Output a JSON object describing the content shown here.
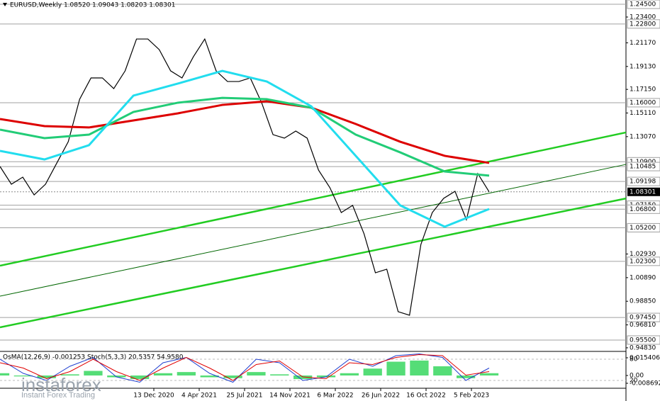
{
  "chart_data": {
    "type": "line",
    "title": "EURUSD,Weekly  1.08520 1.09043 1.08203 1.08301",
    "xticks": [
      "13 Dec 2020",
      "4 Apr 2021",
      "25 Jul 2021",
      "14 Nov 2021",
      "6 Mar 2022",
      "26 Jun 2022",
      "16 Oct 2022",
      "5 Feb 2023"
    ],
    "ylim": [
      0.9458,
      1.2487
    ],
    "yticks": [
      {
        "value": 1.234,
        "label": "1.23400"
      },
      {
        "value": 1.2117,
        "label": "1.21170"
      },
      {
        "value": 1.1913,
        "label": "1.19130"
      },
      {
        "value": 1.1715,
        "label": "1.17150"
      },
      {
        "value": 1.1511,
        "label": "1.15110"
      },
      {
        "value": 1.1307,
        "label": "1.13070"
      },
      {
        "value": 1.0293,
        "label": "1.02930"
      },
      {
        "value": 1.0089,
        "label": "1.00890"
      },
      {
        "value": 0.9885,
        "label": "0.98850"
      },
      {
        "value": 0.9681,
        "label": "0.96810"
      },
      {
        "value": 0.9483,
        "label": "0.94830"
      }
    ],
    "levels": [
      {
        "value": 1.245,
        "label": "1.24500"
      },
      {
        "value": 1.228,
        "label": "1.22800"
      },
      {
        "value": 1.16,
        "label": "1.16000"
      },
      {
        "value": 1.109,
        "label": "1.10900"
      },
      {
        "value": 1.10485,
        "label": "1.10485"
      },
      {
        "value": 1.09198,
        "label": "1.09198"
      },
      {
        "value": 1.0715,
        "label": "1.07150"
      },
      {
        "value": 1.068,
        "label": "1.06800"
      },
      {
        "value": 1.052,
        "label": "1.05200"
      },
      {
        "value": 1.023,
        "label": "1.02300"
      },
      {
        "value": 0.9745,
        "label": "0.97450"
      },
      {
        "value": 0.955,
        "label": "0.95500"
      }
    ],
    "current_price": {
      "value": 1.08301,
      "label": "1.08301"
    },
    "series": [
      {
        "color": "#000000",
        "values": [
          1.1049,
          1.0896,
          1.0957,
          1.0804,
          1.0896,
          1.108,
          1.1263,
          1.163,
          1.1814,
          1.1814,
          1.1722,
          1.1875,
          1.215,
          1.215,
          1.2058,
          1.1875,
          1.1814,
          1.1997,
          1.215,
          1.1875,
          1.1783,
          1.1783,
          1.1814,
          1.16,
          1.1324,
          1.1294,
          1.1355,
          1.1294,
          1.1018,
          1.0866,
          1.0651,
          1.0713,
          1.0468,
          1.0131,
          1.0162,
          0.9795,
          0.9764,
          1.0376,
          1.0651,
          1.0774,
          1.0835,
          1.059,
          1.0988,
          1.083
        ]
      },
      {
        "color": "#dd0000",
        "values": [
          1.1459,
          1.1398,
          1.1386,
          1.1447,
          1.1508,
          1.1581,
          1.1612,
          1.1557,
          1.1416,
          1.1263,
          1.1141,
          1.108
        ]
      },
      {
        "color": "#22cc77",
        "values": [
          1.1367,
          1.1294,
          1.1324,
          1.152,
          1.16,
          1.1642,
          1.163,
          1.1557,
          1.1324,
          1.1171,
          1.1006,
          1.097
        ]
      },
      {
        "color": "#22ddee",
        "values": [
          1.1184,
          1.111,
          1.1233,
          1.1661,
          1.1765,
          1.1875,
          1.1783,
          1.1569,
          1.1141,
          1.0713,
          1.0529,
          1.0682
        ]
      }
    ],
    "trendlines": [
      {
        "color": "#22cc22",
        "values": [
          1.0192,
          1.1343
        ]
      },
      {
        "color": "#22cc22",
        "values": [
          0.966,
          1.0773
        ]
      },
      {
        "color": "#006600",
        "values": [
          0.9929,
          1.1067
        ]
      }
    ],
    "indicator_label": "OsMA(12,26,9) -0.001253  Stoch(5,3,3) 20.5357 54.9580",
    "osma": {
      "color": "#55dd77",
      "values": [
        0.002,
        -0.001,
        -0.003,
        0.001,
        0.004,
        -0.002,
        -0.004,
        0.002,
        0.003,
        -0.002,
        -0.003,
        0.003,
        0.001,
        -0.004,
        -0.002,
        0.002,
        0.006,
        0.012,
        0.013,
        0.008,
        -0.003,
        0.002
      ],
      "ylim": [
        -0.008692,
        0.0154064
      ],
      "ticks": [
        {
          "value": 0.0154064,
          "label": "0.0154064"
        },
        {
          "value": 0,
          "label": "0.00"
        },
        {
          "value": -0.008692,
          "label": "-0.008692"
        }
      ]
    },
    "stoch": {
      "ylim": [
        0,
        100
      ],
      "ticks": [
        80,
        20
      ],
      "series": [
        {
          "color": "#1f3fd0",
          "values": [
            80,
            40,
            20,
            60,
            85,
            30,
            15,
            70,
            85,
            40,
            15,
            80,
            70,
            20,
            30,
            80,
            60,
            90,
            95,
            85,
            20,
            55
          ]
        },
        {
          "color": "#e00000",
          "values": [
            70,
            55,
            25,
            45,
            80,
            45,
            20,
            55,
            85,
            55,
            20,
            65,
            75,
            30,
            25,
            70,
            65,
            85,
            93,
            90,
            35,
            45
          ]
        }
      ]
    },
    "watermark": "instaforex",
    "watermark_sub": "Instant Forex Trading"
  }
}
